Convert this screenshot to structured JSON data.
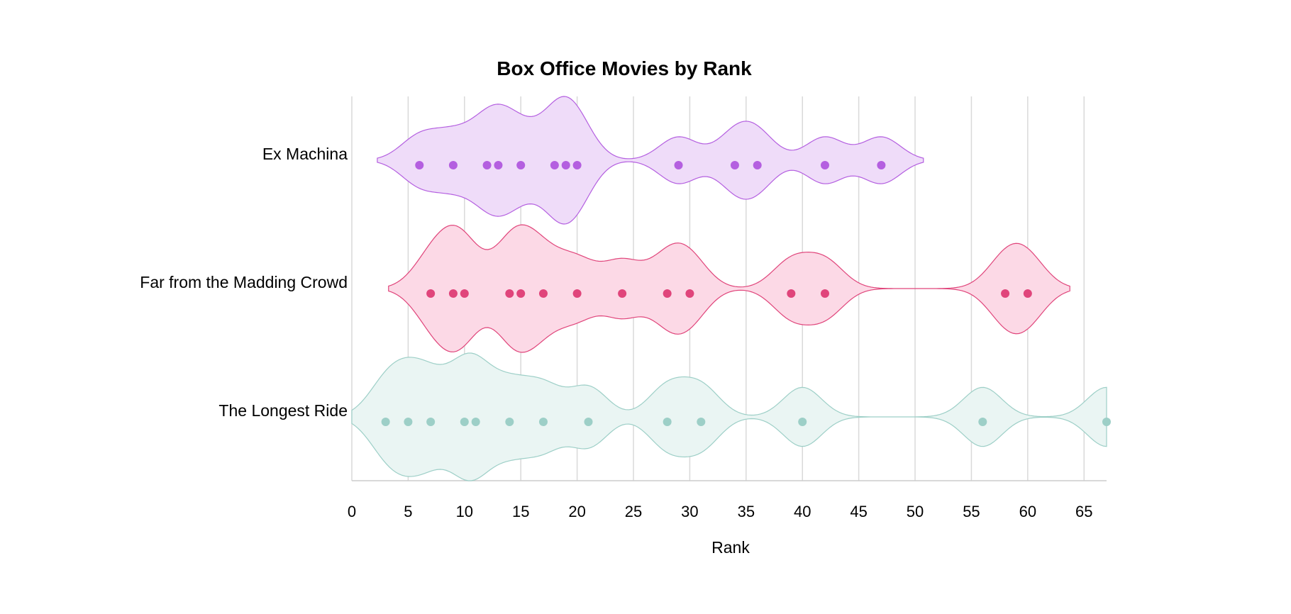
{
  "chart_data": {
    "type": "violin",
    "title": "Box Office Movies by Rank",
    "xlabel": "Rank",
    "ylabel": "",
    "xlim": [
      0,
      67
    ],
    "xticks": [
      0,
      5,
      10,
      15,
      20,
      25,
      30,
      35,
      40,
      45,
      50,
      55,
      60,
      65
    ],
    "grid": true,
    "series": [
      {
        "name": "Ex Machina",
        "color": "#b45fe0",
        "fill": "#efdcf9",
        "values": [
          6,
          9,
          12,
          13,
          15,
          18,
          19,
          20,
          29,
          34,
          36,
          42,
          47
        ]
      },
      {
        "name": "Far from the Madding Crowd",
        "color": "#e0457b",
        "fill": "#fcd9e6",
        "values": [
          7,
          9,
          10,
          14,
          15,
          17,
          20,
          24,
          28,
          30,
          39,
          42,
          58,
          60
        ]
      },
      {
        "name": "The Longest Ride",
        "color": "#9dcfc7",
        "fill": "#eaf5f3",
        "values": [
          3,
          5,
          7,
          10,
          11,
          14,
          17,
          21,
          28,
          31,
          40,
          56,
          67
        ]
      }
    ]
  }
}
